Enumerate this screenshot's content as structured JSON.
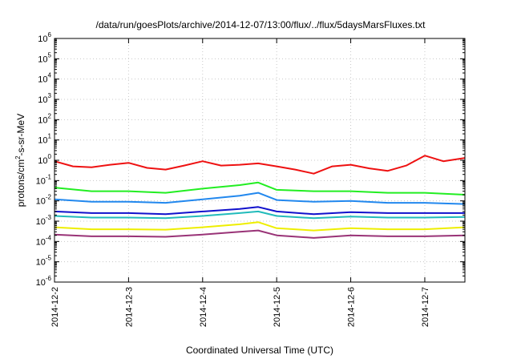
{
  "chart_data": {
    "type": "line",
    "title": "/data/run/goesPlots/archive/2014-12-07/13:00/flux/../flux/5daysMarsFluxes.txt",
    "xlabel": "Coordinated Universal Time (UTC)",
    "ylabel": {
      "base": "protons/cm",
      "sup": "2",
      "rest": "-s-sr-MeV"
    },
    "xscale": "time",
    "x_range": [
      "2014-12-02",
      "2014-12-07T13:00"
    ],
    "x_ticks": [
      "2014-12-2",
      "2014-12-3",
      "2014-12-4",
      "2014-12-5",
      "2014-12-6",
      "2014-12-7"
    ],
    "yscale": "log",
    "ylim": [
      1e-06,
      1000000.0
    ],
    "y_ticks": [
      {
        "base": "10",
        "exp": "-6"
      },
      {
        "base": "10",
        "exp": "-5"
      },
      {
        "base": "10",
        "exp": "-4"
      },
      {
        "base": "10",
        "exp": "-3"
      },
      {
        "base": "10",
        "exp": "-2"
      },
      {
        "base": "10",
        "exp": "-1"
      },
      {
        "base": "10",
        "exp": "0"
      },
      {
        "base": "10",
        "exp": "1"
      },
      {
        "base": "10",
        "exp": "2"
      },
      {
        "base": "10",
        "exp": "3"
      },
      {
        "base": "10",
        "exp": "4"
      },
      {
        "base": "10",
        "exp": "5"
      },
      {
        "base": "10",
        "exp": "6"
      }
    ],
    "grid": true,
    "legend": "none",
    "series": [
      {
        "color": "#ee1111",
        "x": [
          "2014-12-02T00:00",
          "2014-12-02T06:00",
          "2014-12-02T12:00",
          "2014-12-02T18:00",
          "2014-12-03T00:00",
          "2014-12-03T06:00",
          "2014-12-03T12:00",
          "2014-12-03T18:00",
          "2014-12-04T00:00",
          "2014-12-04T06:00",
          "2014-12-04T12:00",
          "2014-12-04T18:00",
          "2014-12-05T00:00",
          "2014-12-05T06:00",
          "2014-12-05T12:00",
          "2014-12-05T18:00",
          "2014-12-06T00:00",
          "2014-12-06T06:00",
          "2014-12-06T12:00",
          "2014-12-06T18:00",
          "2014-12-07T00:00",
          "2014-12-07T06:00",
          "2014-12-07T13:00"
        ],
        "y": [
          0.9,
          0.5,
          0.45,
          0.6,
          0.75,
          0.42,
          0.35,
          0.55,
          0.9,
          0.55,
          0.6,
          0.7,
          0.5,
          0.35,
          0.22,
          0.5,
          0.6,
          0.4,
          0.3,
          0.55,
          1.7,
          0.9,
          1.3
        ]
      },
      {
        "color": "#22ee22",
        "x": [
          "2014-12-02T00:00",
          "2014-12-02T12:00",
          "2014-12-03T00:00",
          "2014-12-03T12:00",
          "2014-12-04T00:00",
          "2014-12-04T12:00",
          "2014-12-04T18:00",
          "2014-12-05T00:00",
          "2014-12-05T12:00",
          "2014-12-06T00:00",
          "2014-12-06T12:00",
          "2014-12-07T00:00",
          "2014-12-07T13:00"
        ],
        "y": [
          0.045,
          0.03,
          0.03,
          0.025,
          0.04,
          0.06,
          0.08,
          0.035,
          0.03,
          0.03,
          0.025,
          0.025,
          0.02
        ]
      },
      {
        "color": "#2288ee",
        "x": [
          "2014-12-02T00:00",
          "2014-12-02T12:00",
          "2014-12-03T00:00",
          "2014-12-03T12:00",
          "2014-12-04T00:00",
          "2014-12-04T12:00",
          "2014-12-04T18:00",
          "2014-12-05T00:00",
          "2014-12-05T12:00",
          "2014-12-06T00:00",
          "2014-12-06T12:00",
          "2014-12-07T00:00",
          "2014-12-07T13:00"
        ],
        "y": [
          0.012,
          0.009,
          0.009,
          0.008,
          0.012,
          0.018,
          0.025,
          0.011,
          0.009,
          0.01,
          0.008,
          0.008,
          0.007
        ]
      },
      {
        "color": "#1111cc",
        "x": [
          "2014-12-02T00:00",
          "2014-12-02T12:00",
          "2014-12-03T00:00",
          "2014-12-03T12:00",
          "2014-12-04T00:00",
          "2014-12-04T12:00",
          "2014-12-04T18:00",
          "2014-12-05T00:00",
          "2014-12-05T12:00",
          "2014-12-06T00:00",
          "2014-12-06T12:00",
          "2014-12-07T00:00",
          "2014-12-07T13:00"
        ],
        "y": [
          0.003,
          0.0025,
          0.0025,
          0.0022,
          0.003,
          0.004,
          0.005,
          0.003,
          0.0022,
          0.0028,
          0.0025,
          0.0025,
          0.0025
        ]
      },
      {
        "color": "#22bbbb",
        "x": [
          "2014-12-02T00:00",
          "2014-12-02T12:00",
          "2014-12-03T00:00",
          "2014-12-03T12:00",
          "2014-12-04T00:00",
          "2014-12-04T12:00",
          "2014-12-04T18:00",
          "2014-12-05T00:00",
          "2014-12-05T12:00",
          "2014-12-06T00:00",
          "2014-12-06T12:00",
          "2014-12-07T00:00",
          "2014-12-07T13:00"
        ],
        "y": [
          0.0018,
          0.0015,
          0.0015,
          0.0014,
          0.0018,
          0.0025,
          0.003,
          0.0018,
          0.0014,
          0.0017,
          0.0015,
          0.0015,
          0.0016
        ]
      },
      {
        "color": "#eeee00",
        "x": [
          "2014-12-02T00:00",
          "2014-12-02T12:00",
          "2014-12-03T00:00",
          "2014-12-03T12:00",
          "2014-12-04T00:00",
          "2014-12-04T12:00",
          "2014-12-04T18:00",
          "2014-12-05T00:00",
          "2014-12-05T12:00",
          "2014-12-06T00:00",
          "2014-12-06T12:00",
          "2014-12-07T00:00",
          "2014-12-07T13:00"
        ],
        "y": [
          0.0005,
          0.0004,
          0.0004,
          0.00038,
          0.0005,
          0.0007,
          0.0009,
          0.00045,
          0.00035,
          0.00045,
          0.0004,
          0.0004,
          0.0005
        ]
      },
      {
        "color": "#993377",
        "x": [
          "2014-12-02T00:00",
          "2014-12-02T12:00",
          "2014-12-03T00:00",
          "2014-12-03T12:00",
          "2014-12-04T00:00",
          "2014-12-04T12:00",
          "2014-12-04T18:00",
          "2014-12-05T00:00",
          "2014-12-05T12:00",
          "2014-12-06T00:00",
          "2014-12-06T12:00",
          "2014-12-07T00:00",
          "2014-12-07T13:00"
        ],
        "y": [
          0.00022,
          0.00018,
          0.00018,
          0.00017,
          0.00022,
          0.0003,
          0.00035,
          0.0002,
          0.00015,
          0.0002,
          0.00018,
          0.00018,
          0.0002
        ]
      }
    ]
  }
}
